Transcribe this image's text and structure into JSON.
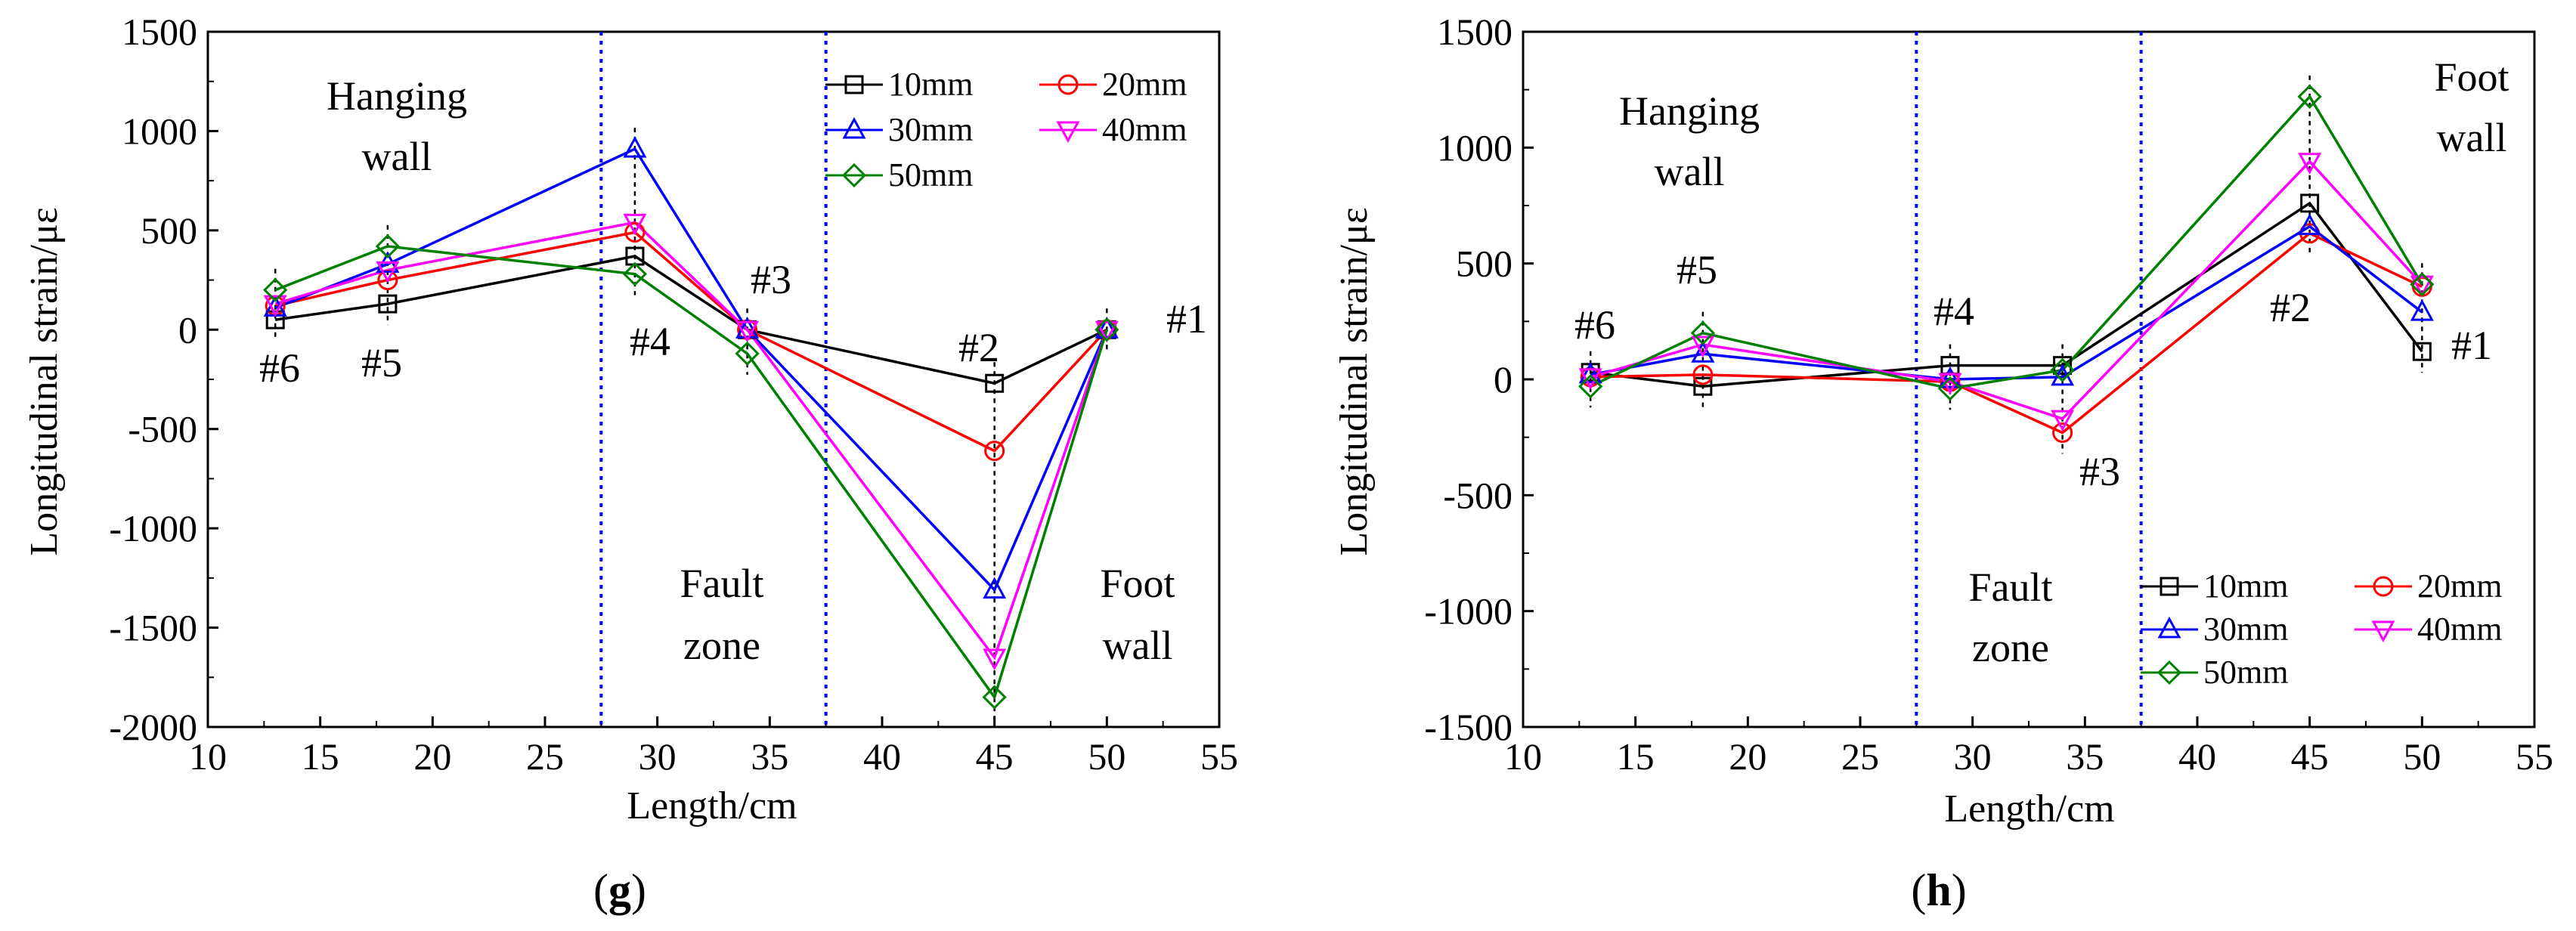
{
  "colors": {
    "10mm": "#000000",
    "20mm": "#ff0000",
    "30mm": "#0000ff",
    "40mm": "#ff00ff",
    "50mm": "#008000",
    "divider": "#0000ff"
  },
  "chart_data": [
    {
      "id": "g",
      "type": "line",
      "panel_label": "g",
      "xlabel": "Length/cm",
      "ylabel": "Longitudinal strain/με",
      "xlim": [
        10,
        55
      ],
      "ylim": [
        -2000,
        1500
      ],
      "xticks": [
        10,
        15,
        20,
        25,
        30,
        35,
        40,
        45,
        50,
        55
      ],
      "yticks": [
        -2000,
        -1500,
        -1000,
        -500,
        0,
        500,
        1000,
        1500
      ],
      "x": [
        13,
        18,
        29,
        34,
        45,
        50
      ],
      "series": [
        {
          "name": "10mm",
          "marker": "square",
          "values": [
            50,
            130,
            370,
            0,
            -270,
            0
          ]
        },
        {
          "name": "20mm",
          "marker": "circle",
          "values": [
            120,
            250,
            490,
            0,
            -610,
            0
          ]
        },
        {
          "name": "30mm",
          "marker": "triangle-up",
          "values": [
            110,
            330,
            910,
            0,
            -1310,
            0
          ]
        },
        {
          "name": "40mm",
          "marker": "triangle-down",
          "values": [
            130,
            300,
            540,
            0,
            -1650,
            0
          ]
        },
        {
          "name": "50mm",
          "marker": "diamond",
          "values": [
            200,
            420,
            280,
            -120,
            -1850,
            0
          ]
        }
      ],
      "dividers": [
        27.5,
        37.5
      ],
      "regions": [
        {
          "lines": [
            "Hanging",
            "wall"
          ]
        },
        {
          "lines": [
            "Fault",
            "zone"
          ]
        },
        {
          "lines": [
            "Foot",
            "wall"
          ]
        }
      ],
      "point_labels": [
        "#6",
        "#5",
        "#4",
        "#3",
        "#2",
        "#1"
      ],
      "legend_position": "top-right"
    },
    {
      "id": "h",
      "type": "line",
      "panel_label": "h",
      "xlabel": "Length/cm",
      "ylabel": "Longitudinal strain/με",
      "xlim": [
        10,
        55
      ],
      "ylim": [
        -1500,
        1500
      ],
      "xticks": [
        10,
        15,
        20,
        25,
        30,
        35,
        40,
        45,
        50,
        55
      ],
      "yticks": [
        -1500,
        -1000,
        -500,
        0,
        500,
        1000,
        1500
      ],
      "x": [
        13,
        18,
        29,
        34,
        45,
        50
      ],
      "series": [
        {
          "name": "10mm",
          "marker": "square",
          "values": [
            30,
            -30,
            60,
            60,
            760,
            120
          ]
        },
        {
          "name": "20mm",
          "marker": "circle",
          "values": [
            10,
            20,
            -10,
            -230,
            630,
            400
          ]
        },
        {
          "name": "30mm",
          "marker": "triangle-up",
          "values": [
            20,
            110,
            0,
            10,
            660,
            290
          ]
        },
        {
          "name": "40mm",
          "marker": "triangle-down",
          "values": [
            10,
            150,
            -10,
            -170,
            940,
            410
          ]
        },
        {
          "name": "50mm",
          "marker": "diamond",
          "values": [
            -30,
            200,
            -40,
            40,
            1220,
            410
          ]
        }
      ],
      "dividers": [
        27.5,
        37.5
      ],
      "regions": [
        {
          "lines": [
            "Hanging",
            "wall"
          ]
        },
        {
          "lines": [
            "Fault",
            "zone"
          ]
        },
        {
          "lines": [
            "Foot",
            "wall"
          ]
        }
      ],
      "point_labels": [
        "#6",
        "#5",
        "#4",
        "#3",
        "#2",
        "#1"
      ],
      "legend_position": "bottom-right"
    }
  ]
}
